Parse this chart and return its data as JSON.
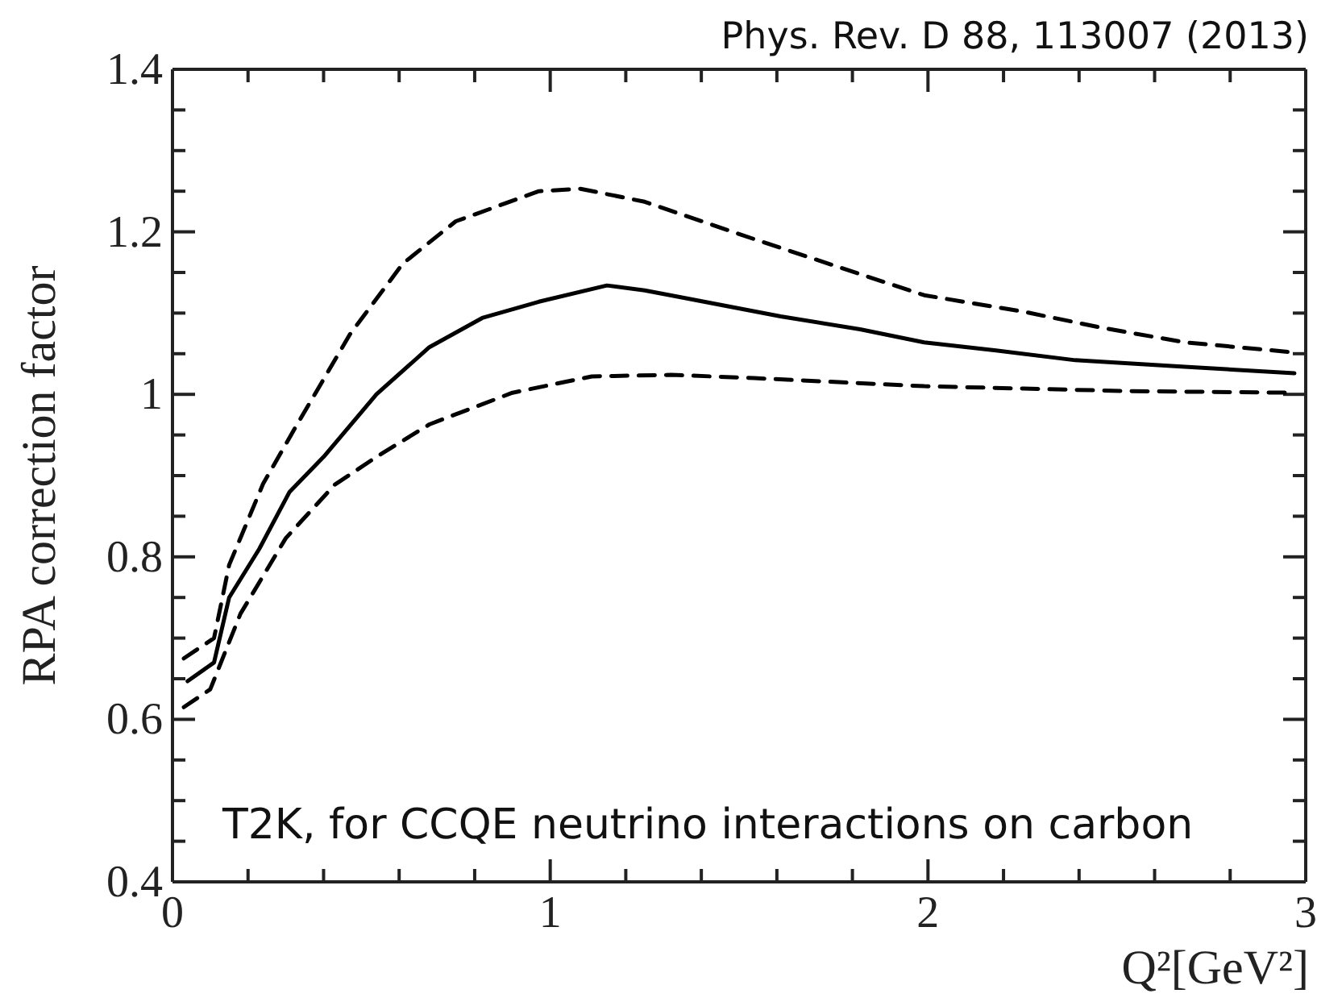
{
  "chart_data": {
    "type": "line",
    "xlabel": "Q²[GeV²]",
    "ylabel": "RPA correction factor",
    "annotations": [
      "Phys. Rev. D 88, 113007 (2013)",
      "T2K, for CCQE neutrino interactions on carbon"
    ],
    "xlim": [
      0,
      3
    ],
    "ylim": [
      0.4,
      1.4
    ],
    "xticks": [
      0,
      {
        "value": 0.2,
        "label": null
      },
      {
        "value": 0.4,
        "label": null
      },
      {
        "value": 0.6,
        "label": null
      },
      {
        "value": 0.8,
        "label": null
      },
      1,
      {
        "value": 1.2,
        "label": null
      },
      {
        "value": 1.4,
        "label": null
      },
      {
        "value": 1.6,
        "label": null
      },
      {
        "value": 1.8,
        "label": null
      },
      2,
      {
        "value": 2.2,
        "label": null
      },
      {
        "value": 2.4,
        "label": null
      },
      {
        "value": 2.6,
        "label": null
      },
      {
        "value": 2.8,
        "label": null
      },
      3
    ],
    "yticks": [
      0.4,
      {
        "value": 0.45,
        "label": null
      },
      {
        "value": 0.5,
        "label": null
      },
      {
        "value": 0.55,
        "label": null
      },
      0.6,
      {
        "value": 0.65,
        "label": null
      },
      {
        "value": 0.7,
        "label": null
      },
      {
        "value": 0.75,
        "label": null
      },
      0.8,
      {
        "value": 0.85,
        "label": null
      },
      {
        "value": 0.9,
        "label": null
      },
      {
        "value": 0.95,
        "label": null
      },
      1,
      {
        "value": 1.05,
        "label": null
      },
      {
        "value": 1.1,
        "label": null
      },
      {
        "value": 1.15,
        "label": null
      },
      1.2,
      {
        "value": 1.25,
        "label": null
      },
      {
        "value": 1.3,
        "label": null
      },
      {
        "value": 1.35,
        "label": null
      },
      1.4
    ],
    "marker": "none",
    "series": [
      {
        "color": "#000000",
        "line_style": "solid",
        "x": [
          0.04,
          0.11,
          0.15,
          0.23,
          0.31,
          0.4,
          0.54,
          0.68,
          0.82,
          0.97,
          1.15,
          1.25,
          1.34,
          1.61,
          1.82,
          1.99,
          2.18,
          2.39,
          2.68,
          2.97
        ],
        "values": [
          0.647,
          0.67,
          0.75,
          0.81,
          0.88,
          0.923,
          1.0,
          1.058,
          1.094,
          1.114,
          1.134,
          1.128,
          1.12,
          1.096,
          1.08,
          1.064,
          1.054,
          1.042,
          1.034,
          1.026
        ]
      },
      {
        "color": "#000000",
        "line_style": "dashed",
        "x": [
          0.03,
          0.11,
          0.15,
          0.24,
          0.33,
          0.47,
          0.61,
          0.75,
          0.97,
          1.08,
          1.25,
          1.54,
          1.82,
          1.99,
          2.25,
          2.46,
          2.68,
          2.96
        ],
        "values": [
          0.675,
          0.7,
          0.79,
          0.89,
          0.963,
          1.074,
          1.161,
          1.213,
          1.25,
          1.253,
          1.237,
          1.191,
          1.148,
          1.122,
          1.102,
          1.082,
          1.064,
          1.052
        ]
      },
      {
        "color": "#000000",
        "line_style": "dashed",
        "x": [
          0.03,
          0.1,
          0.18,
          0.3,
          0.43,
          0.54,
          0.68,
          0.9,
          1.11,
          1.32,
          1.54,
          1.99,
          2.53,
          2.96
        ],
        "values": [
          0.615,
          0.637,
          0.73,
          0.823,
          0.889,
          0.923,
          0.963,
          1.002,
          1.022,
          1.024,
          1.02,
          1.01,
          1.004,
          1.002
        ]
      }
    ]
  }
}
